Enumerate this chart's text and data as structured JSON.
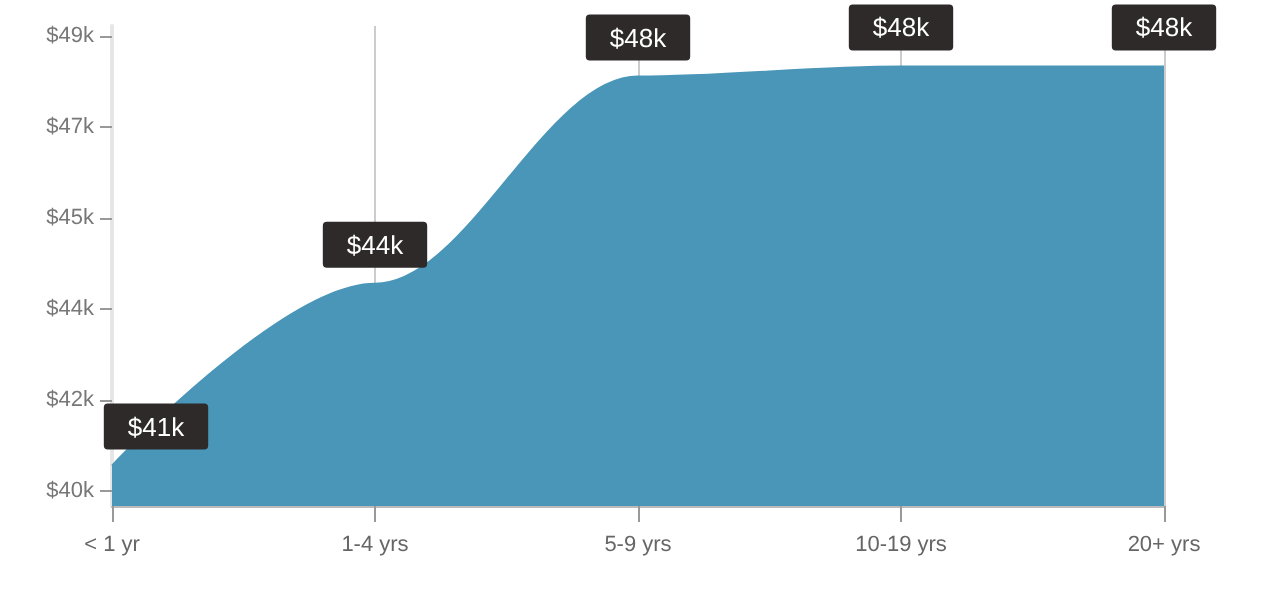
{
  "chart_data": {
    "type": "area",
    "categories": [
      "< 1 yr",
      "1-4 yrs",
      "5-9 yrs",
      "10-19 yrs",
      "20+ yrs"
    ],
    "series": [
      {
        "color": "#4a96b9",
        "values": [
          40.5,
          44.1,
          48.2,
          48.4,
          48.4
        ],
        "value_labels": [
          "$41k",
          "$44k",
          "$48k",
          "$48k",
          "$48k"
        ]
      }
    ],
    "ylim": [
      39.7,
      49.2
    ],
    "yticks": [
      {
        "value": 40,
        "label": "$40k"
      },
      {
        "value": 41.8,
        "label": "$42k"
      },
      {
        "value": 43.6,
        "label": "$44k"
      },
      {
        "value": 45.4,
        "label": "$45k"
      },
      {
        "value": 47.2,
        "label": "$47k"
      },
      {
        "value": 49,
        "label": "$49k"
      }
    ],
    "grid": "x",
    "marker": "none"
  }
}
